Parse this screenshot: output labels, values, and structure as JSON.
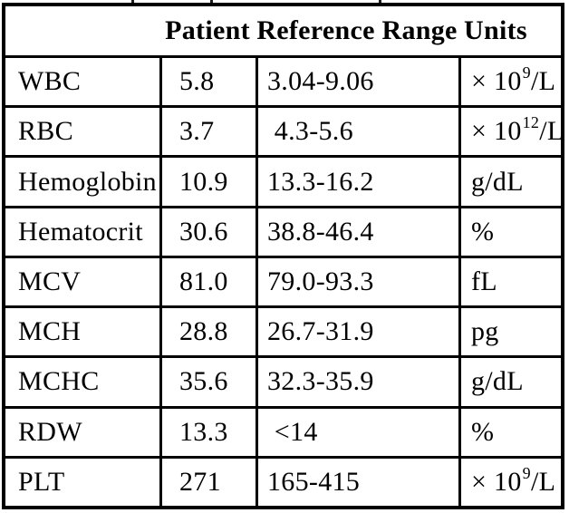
{
  "table": {
    "headers": {
      "test": "",
      "patient": "Patient",
      "range": "Reference Range",
      "units": "Units"
    },
    "rows": [
      {
        "test": "WBC",
        "patient": "5.8",
        "range": "3.04-9.06",
        "unit_base": "× 10",
        "unit_sup": "9",
        "unit_rest": "/L"
      },
      {
        "test": "RBC",
        "patient": "3.7",
        "range": " 4.3-5.6",
        "unit_base": "× 10",
        "unit_sup": "12",
        "unit_rest": "/L"
      },
      {
        "test": "Hemoglobin",
        "patient": "10.9",
        "range": "13.3-16.2",
        "unit_base": "g/dL",
        "unit_sup": "",
        "unit_rest": ""
      },
      {
        "test": "Hematocrit",
        "patient": "30.6",
        "range": "38.8-46.4",
        "unit_base": "%",
        "unit_sup": "",
        "unit_rest": ""
      },
      {
        "test": "MCV",
        "patient": "81.0",
        "range": "79.0-93.3",
        "unit_base": "fL",
        "unit_sup": "",
        "unit_rest": ""
      },
      {
        "test": "MCH",
        "patient": "28.8",
        "range": "26.7-31.9",
        "unit_base": "pg",
        "unit_sup": "",
        "unit_rest": ""
      },
      {
        "test": "MCHC",
        "patient": "35.6",
        "range": "32.3-35.9",
        "unit_base": "g/dL",
        "unit_sup": "",
        "unit_rest": ""
      },
      {
        "test": "RDW",
        "patient": "13.3",
        "range": " <14",
        "unit_base": "%",
        "unit_sup": "",
        "unit_rest": ""
      },
      {
        "test": "PLT",
        "patient": "271",
        "range": "165-415",
        "unit_base": "× 10",
        "unit_sup": "9",
        "unit_rest": "/L"
      }
    ]
  },
  "colors": {
    "border": "#000000",
    "text": "#000000",
    "background": "#ffffff"
  }
}
